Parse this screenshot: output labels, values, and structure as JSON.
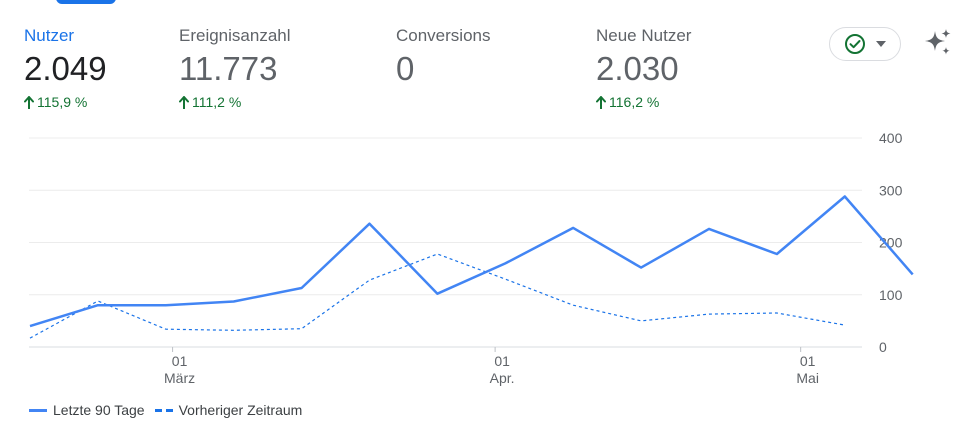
{
  "metrics": [
    {
      "label": "Nutzer",
      "value": "2.049",
      "change": "115,9 %",
      "active": true
    },
    {
      "label": "Ereignisanzahl",
      "value": "11.773",
      "change": "111,2 %",
      "active": false
    },
    {
      "label": "Conversions",
      "value": "0",
      "change": "",
      "active": false
    },
    {
      "label": "Neue Nutzer",
      "value": "2.030",
      "change": "116,2 %",
      "active": false
    }
  ],
  "toolbar": {
    "status_icon": "check-circle-icon",
    "dropdown_icon": "caret-down-icon",
    "insights_icon": "sparkle-icon"
  },
  "colors": {
    "accent": "#1a73e8",
    "positive": "#137333",
    "series_current": "#4285f4",
    "series_previous": "#1a73e8"
  },
  "chart_data": {
    "type": "line",
    "ylim": [
      0,
      400
    ],
    "yticks": [
      "0",
      "100",
      "200",
      "300",
      "400"
    ],
    "ytick_values": [
      0,
      100,
      200,
      300,
      400
    ],
    "x_count": 14,
    "xticks": [
      {
        "index": 2.1,
        "day": "01",
        "month": "März"
      },
      {
        "index": 6.85,
        "day": "01",
        "month": "Apr."
      },
      {
        "index": 11.35,
        "day": "01",
        "month": "Mai"
      }
    ],
    "grid": true,
    "legend_position": "bottom-left",
    "series": [
      {
        "name": "Letzte 90 Tage",
        "style": "solid",
        "values": [
          40,
          80,
          80,
          87,
          113,
          236,
          102,
          160,
          228,
          152,
          226,
          178,
          288,
          139
        ]
      },
      {
        "name": "Vorheriger Zeitraum",
        "style": "dashed",
        "values": [
          17,
          88,
          34,
          32,
          35,
          128,
          178,
          130,
          80,
          50,
          63,
          65,
          42
        ]
      }
    ]
  }
}
